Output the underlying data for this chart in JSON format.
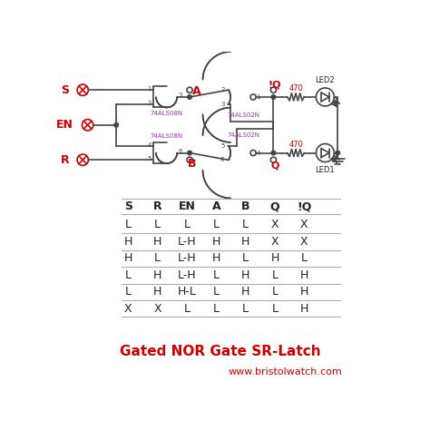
{
  "title": "Gated NOR Gate SR-Latch",
  "website": "www.bristolwatch.com",
  "table_headers": [
    "S",
    "R",
    "EN",
    "A",
    "B",
    "Q",
    "!Q"
  ],
  "table_rows": [
    [
      "L",
      "L",
      "L",
      "L",
      "L",
      "X",
      "X"
    ],
    [
      "H",
      "H",
      "L-H",
      "H",
      "H",
      "X",
      "X"
    ],
    [
      "H",
      "L",
      "L-H",
      "H",
      "L",
      "H",
      "L"
    ],
    [
      "L",
      "H",
      "L-H",
      "L",
      "H",
      "L",
      "H"
    ],
    [
      "L",
      "H",
      "H-L",
      "L",
      "H",
      "L",
      "H"
    ],
    [
      "X",
      "X",
      "L",
      "L",
      "L",
      "L",
      "H"
    ]
  ],
  "bg_color": "#ffffff",
  "red_color": "#cc0000",
  "purple_color": "#9933bb",
  "black_color": "#222222",
  "gray_color": "#666666",
  "title_fontsize": 11,
  "website_fontsize": 8,
  "table_fontsize": 9,
  "table_header_fontsize": 9,
  "circuit_line_color": "#444444",
  "circuit_lw": 1.2
}
